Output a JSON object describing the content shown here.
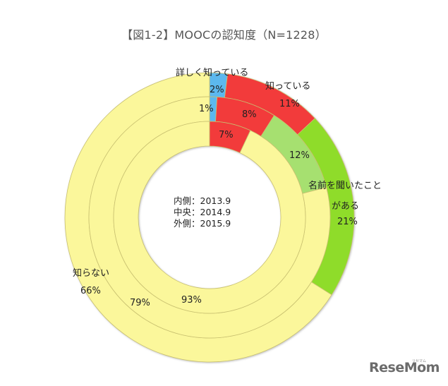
{
  "title": "【図1-2】MOOCの認知度（N=1228）",
  "center_note": {
    "inner": "内側：2013.9",
    "middle": "中央：2014.9",
    "outer": "外側：2015.9"
  },
  "labels": {
    "know_well": "詳しく知っている",
    "know": "知っている",
    "heard_line1": "名前を聞いたこと",
    "heard_line2": "がある",
    "dont_know": "知らない"
  },
  "value_labels": {
    "outer_know_well": "2%",
    "outer_know": "11%",
    "outer_heard": "21%",
    "outer_dont_know": "66%",
    "middle_know_well": "1%",
    "middle_know": "8%",
    "middle_heard": "12%",
    "middle_dont_know": "79%",
    "inner_know": "7%",
    "inner_dont_know": "93%"
  },
  "logo": {
    "text": "ReseMom",
    "sub": "リセマム"
  },
  "colors": {
    "know_well": "#5bb8ee",
    "know": "#f23b3b",
    "heard_outer": "#8fdc2a",
    "heard_middle": "#a6e070",
    "dont_know": "#fbf79b",
    "stroke": "#c8c070"
  },
  "chart_data": {
    "type": "pie",
    "subtype": "multi-ring donut",
    "title": "【図1-2】MOOCの認知度（N=1228）",
    "categories": [
      "詳しく知っている",
      "知っている",
      "名前を聞いたことがある",
      "知らない"
    ],
    "series": [
      {
        "name": "外側：2015.9",
        "ring": "outer",
        "values": [
          2,
          11,
          21,
          66
        ]
      },
      {
        "name": "中央：2014.9",
        "ring": "middle",
        "values": [
          1,
          8,
          12,
          79
        ]
      },
      {
        "name": "内側：2013.9",
        "ring": "inner",
        "values": [
          0,
          7,
          0,
          93
        ]
      }
    ],
    "unit": "%",
    "legend": "none (category labels placed next to outer ring)"
  }
}
